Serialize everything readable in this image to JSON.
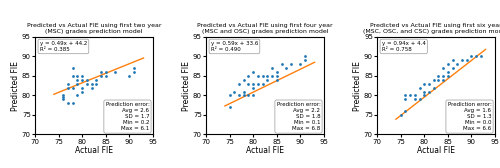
{
  "chart_data": [
    {
      "type": "scatter",
      "title": "Predicted vs Actual FIE using first two year\n(MSC) grades prediction model",
      "xlabel": "Actual FIE",
      "ylabel": "Predicted FIE",
      "series": [
        {
          "type": "scatter",
          "x": [
            76,
            76,
            76,
            77,
            77,
            77,
            78,
            78,
            78,
            78,
            79,
            79,
            79,
            79,
            80,
            80,
            80,
            80,
            81,
            81,
            82,
            82,
            83,
            83,
            84,
            84,
            85,
            85,
            87,
            90,
            91,
            91
          ],
          "values": [
            79,
            79.5,
            80,
            78,
            82,
            83,
            78,
            82,
            85,
            87,
            80,
            83,
            84,
            85,
            81,
            82,
            84,
            85,
            83,
            84,
            82,
            83,
            83,
            84,
            85,
            86,
            85,
            86,
            86,
            85,
            86,
            87
          ]
        },
        {
          "type": "line",
          "x": [
            74,
            93
          ],
          "values": [
            80.3,
            89.6
          ]
        }
      ],
      "annotations": [
        "y = 0.49x + 44.2\nR² = 0.385",
        "Prediction error:\nAvg = 2.6\nSD = 1.7\nMin = 0.2\nMax = 6.1"
      ],
      "xlim": [
        70,
        95
      ],
      "ylim": [
        70,
        95
      ],
      "xticks": [
        70,
        75,
        80,
        85,
        90,
        95
      ],
      "yticks": [
        70,
        75,
        80,
        85,
        90,
        95
      ]
    },
    {
      "type": "scatter",
      "title": "Predicted vs Actual FIE using first four year\n(MSC and OSC) grades prediction model",
      "xlabel": "Actual FIE",
      "ylabel": "Predicted FIE",
      "series": [
        {
          "type": "scatter",
          "x": [
            75,
            75,
            76,
            77,
            77,
            78,
            78,
            78,
            79,
            79,
            79,
            80,
            80,
            80,
            80,
            81,
            81,
            82,
            82,
            83,
            83,
            84,
            84,
            85,
            85,
            85,
            86,
            87,
            88,
            90,
            91,
            91
          ],
          "values": [
            77,
            80,
            81,
            80,
            83,
            80,
            81,
            84,
            80,
            83,
            85,
            80,
            82,
            83,
            86,
            83,
            85,
            83,
            85,
            84,
            85,
            85,
            87,
            84,
            85,
            86,
            88,
            87,
            88,
            88,
            89,
            90
          ]
        },
        {
          "type": "line",
          "x": [
            74,
            93
          ],
          "values": [
            77.3,
            88.5
          ]
        }
      ],
      "annotations": [
        "y = 0.59x + 33.6\nR² = 0.490",
        "Prediction error:\nAvg = 2.2\nSD = 1.8\nMin = 0.1\nMax = 6.8"
      ],
      "xlim": [
        70,
        95
      ],
      "ylim": [
        70,
        95
      ],
      "xticks": [
        70,
        75,
        80,
        85,
        90,
        95
      ],
      "yticks": [
        70,
        75,
        80,
        85,
        90,
        95
      ]
    },
    {
      "type": "scatter",
      "title": "Predicted vs Actual FIE using first six year\n(MSC, OSC, and CSC) grades prediction model",
      "xlabel": "Actual FIE",
      "ylabel": "Predicted FIE",
      "series": [
        {
          "type": "scatter",
          "x": [
            75,
            76,
            76,
            76,
            77,
            78,
            78,
            79,
            79,
            80,
            80,
            80,
            81,
            81,
            82,
            82,
            83,
            83,
            84,
            84,
            84,
            85,
            85,
            85,
            86,
            86,
            87,
            88,
            89,
            90,
            91,
            92
          ],
          "values": [
            75,
            76,
            79,
            80,
            80,
            79,
            80,
            79,
            82,
            80,
            81,
            83,
            81,
            83,
            82,
            84,
            84,
            85,
            84,
            85,
            87,
            85,
            86,
            88,
            87,
            89,
            88,
            89,
            89,
            90,
            90,
            90
          ]
        },
        {
          "type": "line",
          "x": [
            74,
            93
          ],
          "values": [
            73.9,
            91.8
          ]
        }
      ],
      "annotations": [
        "y = 0.94x + 4.4\nR² = 0.758",
        "Prediction error:\nAvg = 1.6\nSD = 1.3\nMin = 0.0\nMax = 6.6"
      ],
      "xlim": [
        70,
        95
      ],
      "ylim": [
        70,
        95
      ],
      "xticks": [
        70,
        75,
        80,
        85,
        90,
        95
      ],
      "yticks": [
        70,
        75,
        80,
        85,
        90,
        95
      ]
    }
  ]
}
